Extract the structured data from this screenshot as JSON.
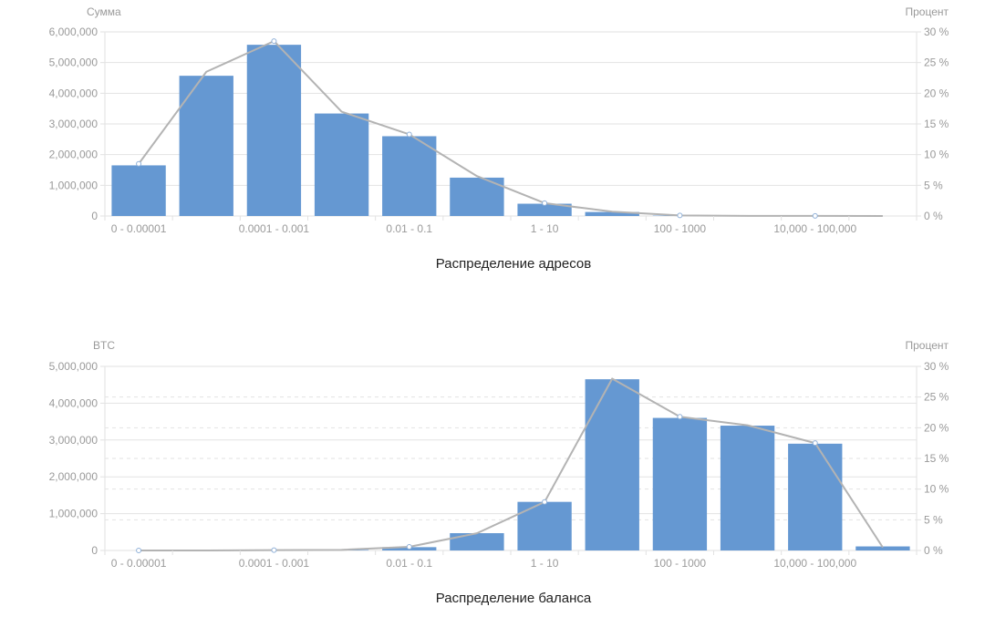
{
  "colors": {
    "bar": "#6598d2",
    "line": "#b3b3b3",
    "grid": "#e2e2e2",
    "axis_text": "#9a9a9a"
  },
  "chart_data": [
    {
      "type": "bar",
      "title": "Распределение адресов",
      "ylabel_left": "Сумма",
      "ylabel_right": "Процент",
      "ylim_left": [
        0,
        6000000
      ],
      "ylim_right": [
        0,
        30
      ],
      "yticks_left": [
        "0",
        "1,000,000",
        "2,000,000",
        "3,000,000",
        "4,000,000",
        "5,000,000",
        "6,000,000"
      ],
      "yticks_right": [
        "0 %",
        "5 %",
        "10 %",
        "15 %",
        "20 %",
        "25 %",
        "30 %"
      ],
      "xtick_labels": [
        {
          "index": 0,
          "label": "0 - 0.00001"
        },
        {
          "index": 2,
          "label": "0.0001 - 0.001"
        },
        {
          "index": 4,
          "label": "0.01 - 0.1"
        },
        {
          "index": 6,
          "label": "1 - 10"
        },
        {
          "index": 8,
          "label": "100 - 1000"
        },
        {
          "index": 10,
          "label": "10,000 - 100,000"
        }
      ],
      "grid": "solid",
      "series": [
        {
          "type": "bar",
          "axis": "left",
          "values": [
            1650000,
            4570000,
            5580000,
            3340000,
            2600000,
            1250000,
            400000,
            130000,
            12000,
            3000,
            500,
            50
          ]
        },
        {
          "type": "line",
          "axis": "right",
          "values": [
            8.5,
            23.5,
            28.5,
            17.0,
            13.3,
            6.5,
            2.1,
            0.7,
            0.1,
            0.02,
            0.01,
            0.0
          ]
        }
      ]
    },
    {
      "type": "bar",
      "title": "Распределение баланса",
      "ylabel_left": "BTC",
      "ylabel_right": "Процент",
      "ylim_left": [
        0,
        5000000
      ],
      "ylim_right": [
        0,
        30
      ],
      "yticks_left": [
        "0",
        "1,000,000",
        "2,000,000",
        "3,000,000",
        "4,000,000",
        "5,000,000"
      ],
      "yticks_right": [
        "0 %",
        "5 %",
        "10 %",
        "15 %",
        "20 %",
        "25 %",
        "30 %"
      ],
      "xtick_labels": [
        {
          "index": 0,
          "label": "0 - 0.00001"
        },
        {
          "index": 2,
          "label": "0.0001 - 0.001"
        },
        {
          "index": 4,
          "label": "0.01 - 0.1"
        },
        {
          "index": 6,
          "label": "1 - 10"
        },
        {
          "index": 8,
          "label": "100 - 1000"
        },
        {
          "index": 10,
          "label": "10,000 - 100,000"
        }
      ],
      "grid": "solid+dashed",
      "series": [
        {
          "type": "bar",
          "axis": "left",
          "values": [
            0,
            10,
            1000,
            15000,
            90000,
            470000,
            1320000,
            4650000,
            3600000,
            3390000,
            2900000,
            110000
          ]
        },
        {
          "type": "line",
          "axis": "right",
          "values": [
            0.0,
            0.0,
            0.05,
            0.1,
            0.6,
            2.8,
            7.9,
            28.0,
            21.8,
            20.4,
            17.5,
            0.5
          ]
        }
      ]
    }
  ]
}
